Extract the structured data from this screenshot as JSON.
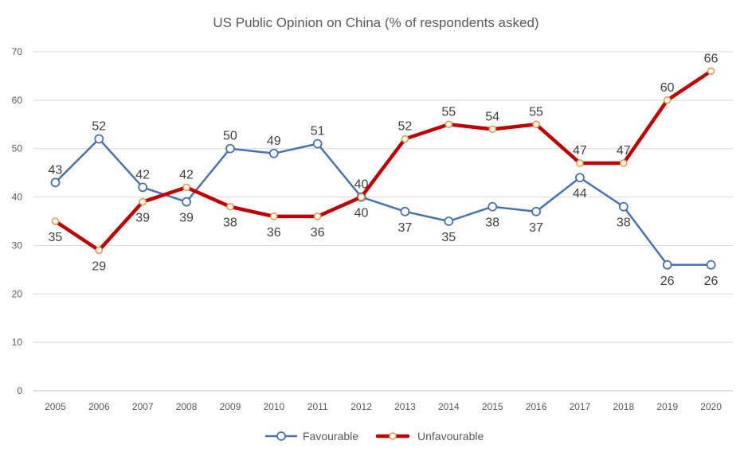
{
  "chart_data": {
    "type": "line",
    "title": "US Public Opinion on China (% of respondents asked)",
    "xlabel": "",
    "ylabel": "",
    "categories": [
      "2005",
      "2006",
      "2007",
      "2008",
      "2009",
      "2010",
      "2011",
      "2012",
      "2013",
      "2014",
      "2015",
      "2016",
      "2017",
      "2018",
      "2019",
      "2020"
    ],
    "ylim": [
      0,
      70
    ],
    "yticks": [
      0,
      10,
      20,
      30,
      40,
      50,
      60,
      70
    ],
    "grid": true,
    "legend_position": "bottom",
    "series": [
      {
        "name": "Favourable",
        "color": "#4a72b0",
        "marker_fill": "#ffffff",
        "values": [
          43,
          52,
          42,
          39,
          50,
          49,
          51,
          40,
          37,
          35,
          38,
          37,
          44,
          38,
          26,
          26
        ],
        "label_positions": [
          "above",
          "above",
          "above",
          "below",
          "above",
          "above",
          "above",
          "below",
          "below",
          "below",
          "below",
          "below",
          "below",
          "below",
          "below",
          "below"
        ]
      },
      {
        "name": "Unfavourable",
        "color": "#c00000",
        "marker_fill": "#ffffff",
        "marker_stroke": "#e69a4a",
        "values": [
          35,
          29,
          39,
          42,
          38,
          36,
          36,
          40,
          52,
          55,
          54,
          55,
          47,
          47,
          60,
          66
        ],
        "label_positions": [
          "below",
          "below",
          "below",
          "above",
          "below",
          "below",
          "below",
          "above",
          "above",
          "above",
          "above",
          "above",
          "above",
          "above",
          "above",
          "above"
        ]
      }
    ]
  }
}
